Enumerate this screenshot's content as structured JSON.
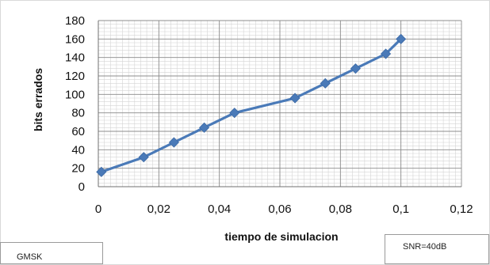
{
  "notes": {
    "left": "GMSK",
    "right": "SNR=40dB"
  },
  "chart_data": {
    "type": "line",
    "title": "",
    "xlabel": "tiempo de simulacion",
    "ylabel": "bits errados",
    "xlim": [
      0,
      0.12
    ],
    "ylim": [
      0,
      180
    ],
    "x_ticks": [
      "0",
      "0,02",
      "0,04",
      "0,06",
      "0,08",
      "0,1",
      "0,12"
    ],
    "y_ticks": [
      "0",
      "20",
      "40",
      "60",
      "80",
      "100",
      "120",
      "140",
      "160",
      "180"
    ],
    "grid": true,
    "marker": "diamond",
    "color": "#4a7ab8",
    "series": [
      {
        "x": [
          0.001,
          0.015,
          0.025,
          0.035,
          0.045,
          0.065,
          0.075,
          0.085,
          0.095,
          0.1
        ],
        "y": [
          16,
          32,
          48,
          64,
          80,
          96,
          112,
          128,
          144,
          160
        ]
      }
    ]
  }
}
